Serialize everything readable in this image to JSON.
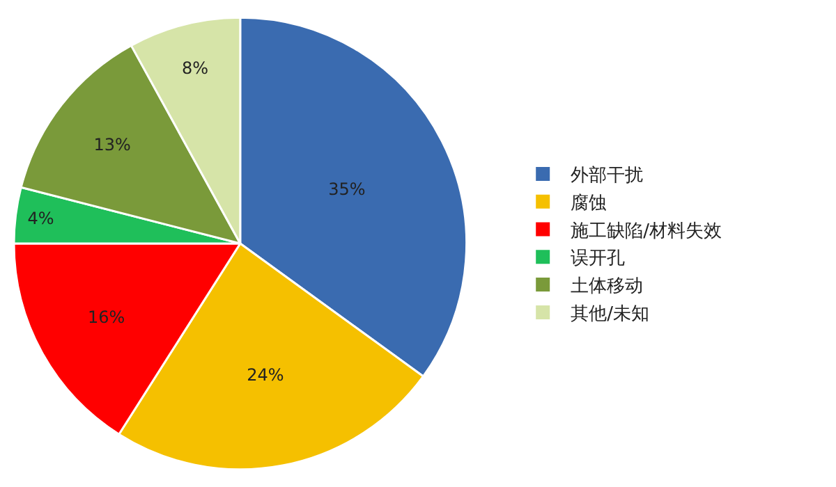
{
  "chart_data": {
    "type": "pie",
    "categories": [
      "外部干扰",
      "腐蚀",
      "施工缺陷/材料失效",
      "误开孔",
      "土体移动",
      "其他/未知"
    ],
    "values": [
      35,
      24,
      16,
      4,
      13,
      8
    ],
    "value_labels": [
      "35%",
      "24%",
      "16%",
      "4%",
      "13%",
      "8%"
    ],
    "colors": [
      "#3a6bb0",
      "#f5c000",
      "#ff0000",
      "#1fbf5a",
      "#7a9a3a",
      "#d6e4a8"
    ],
    "legend": "right"
  }
}
